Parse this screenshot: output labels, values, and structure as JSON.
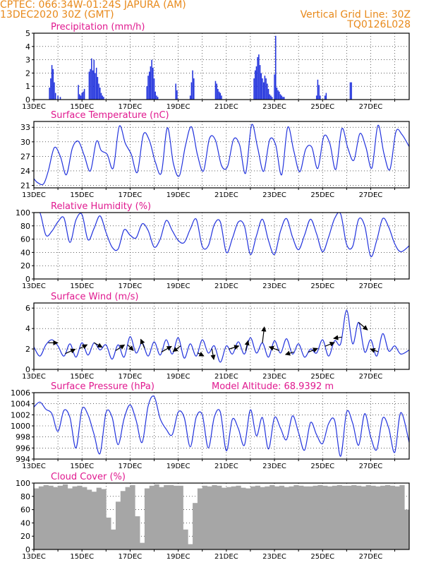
{
  "header": {
    "station_line": "CPTEC:    066:34W-01:24S   JAPURA (AM)",
    "date_line": "13DEC2020 30Z (GMT)",
    "grid_line": "Vertical Grid Line: 30Z",
    "model_code": "TQ0126L028"
  },
  "colors": {
    "header": "#e8891a",
    "panel_title": "#e0198f",
    "series": "#2233dd",
    "wind_arrow": "#000000",
    "cloud_fill": "#a6a6a6",
    "grid": "#000000"
  },
  "chart_data": [
    {
      "type": "bar",
      "title": "Precipitation (mm/h)",
      "x_tick_labels": [
        "13DEC",
        "15DEC",
        "17DEC",
        "19DEC",
        "21DEC",
        "23DEC",
        "25DEC",
        "27DEC"
      ],
      "x_range_days": [
        0,
        15.6
      ],
      "ylim": [
        0,
        5
      ],
      "y_ticks": [
        0,
        1,
        2,
        3,
        4,
        5
      ],
      "x_days": [
        0.65,
        0.7,
        0.75,
        0.8,
        0.85,
        0.9,
        1.0,
        1.1,
        1.85,
        1.9,
        1.95,
        2.0,
        2.05,
        2.1,
        2.3,
        2.35,
        2.4,
        2.45,
        2.5,
        2.55,
        2.6,
        2.65,
        2.7,
        2.75,
        2.8,
        2.85,
        2.9,
        4.7,
        4.75,
        4.8,
        4.85,
        4.9,
        4.95,
        5.0,
        5.05,
        5.1,
        5.15,
        5.9,
        5.95,
        6.5,
        6.55,
        6.6,
        6.65,
        7.55,
        7.6,
        7.65,
        7.7,
        7.75,
        7.8,
        9.15,
        9.2,
        9.25,
        9.3,
        9.35,
        9.4,
        9.45,
        9.5,
        9.55,
        9.6,
        9.65,
        9.7,
        9.75,
        9.8,
        9.85,
        9.9,
        10.0,
        10.05,
        10.1,
        10.15,
        10.2,
        10.25,
        10.3,
        10.35,
        10.4,
        11.75,
        11.8,
        11.85,
        11.9,
        12.1,
        12.15,
        13.15,
        13.2
      ],
      "values": [
        0.9,
        1.6,
        2.6,
        2.3,
        1.3,
        0.5,
        0.3,
        0.2,
        1.1,
        0.4,
        0.3,
        0.5,
        0.6,
        0.8,
        2.1,
        2.3,
        3.1,
        2.2,
        3.0,
        2.0,
        2.4,
        1.7,
        1.2,
        0.9,
        0.5,
        0.3,
        0.2,
        1.0,
        1.8,
        2.1,
        2.5,
        3.0,
        2.4,
        1.6,
        0.6,
        0.3,
        0.2,
        1.2,
        0.7,
        0.3,
        1.3,
        2.2,
        1.6,
        1.4,
        1.2,
        0.8,
        0.6,
        0.5,
        0.3,
        1.6,
        2.2,
        2.5,
        3.2,
        3.4,
        2.6,
        2.0,
        1.6,
        1.3,
        1.8,
        1.6,
        1.2,
        0.8,
        0.4,
        0.3,
        0.2,
        1.9,
        4.8,
        0.9,
        0.7,
        0.6,
        0.4,
        0.3,
        0.2,
        0.2,
        0.3,
        1.5,
        1.1,
        0.3,
        0.3,
        0.5,
        1.3,
        1.3
      ]
    },
    {
      "type": "line",
      "title": "Surface Temperature (nC)",
      "x_tick_labels": [
        "13DEC",
        "15DEC",
        "17DEC",
        "19DEC",
        "21DEC",
        "23DEC",
        "25DEC",
        "27DEC"
      ],
      "x_range_days": [
        0,
        15.6
      ],
      "ylim": [
        20.5,
        34.2
      ],
      "y_ticks": [
        21,
        24,
        27,
        30,
        33
      ],
      "x_days": [
        0.0,
        0.15,
        0.4,
        0.6,
        0.85,
        1.1,
        1.35,
        1.6,
        1.85,
        2.1,
        2.35,
        2.6,
        2.8,
        3.05,
        3.3,
        3.55,
        3.8,
        4.05,
        4.3,
        4.55,
        4.8,
        5.05,
        5.3,
        5.55,
        5.8,
        6.05,
        6.3,
        6.55,
        6.8,
        7.05,
        7.3,
        7.55,
        7.8,
        8.05,
        8.3,
        8.55,
        8.8,
        9.05,
        9.3,
        9.55,
        9.8,
        10.05,
        10.3,
        10.55,
        10.8,
        11.05,
        11.3,
        11.55,
        11.8,
        12.05,
        12.3,
        12.55,
        12.8,
        13.05,
        13.3,
        13.55,
        13.8,
        14.05,
        14.3,
        14.55,
        14.8,
        15.05,
        15.3,
        15.6
      ],
      "values": [
        22.4,
        21.6,
        21.3,
        24.0,
        28.8,
        27.0,
        23.2,
        28.7,
        30.1,
        27.1,
        24.0,
        30.1,
        28.2,
        27.4,
        24.6,
        33.2,
        29.7,
        27.4,
        23.7,
        31.5,
        30.3,
        25.8,
        23.6,
        32.9,
        25.5,
        23.0,
        29.2,
        33.1,
        27.3,
        24.0,
        30.7,
        30.3,
        25.1,
        24.9,
        30.5,
        29.4,
        23.5,
        33.5,
        28.8,
        23.9,
        30.4,
        29.4,
        23.2,
        33.0,
        28.2,
        23.8,
        28.5,
        28.9,
        24.5,
        31.1,
        29.7,
        24.3,
        32.7,
        28.7,
        26.2,
        31.7,
        28.9,
        24.6,
        33.4,
        27.6,
        24.3,
        32.1,
        31.5,
        29.0
      ]
    },
    {
      "type": "line",
      "title": "Relative Humidity (%)",
      "x_tick_labels": [
        "13DEC",
        "15DEC",
        "17DEC",
        "19DEC",
        "21DEC",
        "23DEC",
        "25DEC",
        "27DEC"
      ],
      "x_range_days": [
        0,
        15.6
      ],
      "ylim": [
        0,
        100
      ],
      "y_ticks": [
        0,
        20,
        40,
        60,
        80,
        100
      ],
      "x_days": [
        0.0,
        0.25,
        0.5,
        0.75,
        1.0,
        1.25,
        1.5,
        1.75,
        2.0,
        2.25,
        2.5,
        2.75,
        3.0,
        3.25,
        3.5,
        3.75,
        4.0,
        4.25,
        4.5,
        4.75,
        5.0,
        5.25,
        5.5,
        5.75,
        6.0,
        6.25,
        6.5,
        6.75,
        7.0,
        7.25,
        7.5,
        7.75,
        8.0,
        8.25,
        8.5,
        8.75,
        9.0,
        9.25,
        9.5,
        9.75,
        10.0,
        10.25,
        10.5,
        10.75,
        11.0,
        11.25,
        11.5,
        11.75,
        12.0,
        12.25,
        12.5,
        12.75,
        13.0,
        13.25,
        13.5,
        13.75,
        14.0,
        14.25,
        14.5,
        14.75,
        15.0,
        15.25,
        15.6
      ],
      "values": [
        100,
        100,
        66,
        72,
        86,
        92,
        55,
        89,
        97,
        59,
        76,
        95,
        70,
        48,
        45,
        74,
        66,
        62,
        83,
        73,
        48,
        60,
        88,
        73,
        58,
        55,
        75,
        90,
        49,
        50,
        82,
        86,
        40,
        61,
        86,
        80,
        37,
        65,
        90,
        58,
        37,
        72,
        91,
        63,
        44,
        66,
        90,
        68,
        41,
        63,
        91,
        98,
        52,
        49,
        90,
        80,
        34,
        58,
        91,
        78,
        53,
        41,
        50
      ]
    },
    {
      "type": "line",
      "title": "Surface Wind (m/s)",
      "x_tick_labels": [
        "13DEC",
        "15DEC",
        "17DEC",
        "19DEC",
        "21DEC",
        "23DEC",
        "25DEC",
        "27DEC"
      ],
      "x_range_days": [
        0,
        15.6
      ],
      "ylim": [
        0,
        6.5
      ],
      "y_ticks": [
        0,
        2,
        4,
        6
      ],
      "x_days": [
        0.0,
        0.25,
        0.5,
        0.75,
        1.0,
        1.25,
        1.5,
        1.75,
        2.0,
        2.25,
        2.5,
        2.75,
        3.0,
        3.25,
        3.5,
        3.75,
        4.0,
        4.25,
        4.5,
        4.75,
        5.0,
        5.25,
        5.5,
        5.75,
        6.0,
        6.25,
        6.5,
        6.75,
        7.0,
        7.25,
        7.5,
        7.75,
        8.0,
        8.25,
        8.5,
        8.75,
        9.0,
        9.25,
        9.5,
        9.75,
        10.0,
        10.25,
        10.5,
        10.75,
        11.0,
        11.25,
        11.5,
        11.75,
        12.0,
        12.25,
        12.5,
        12.75,
        13.0,
        13.25,
        13.5,
        13.75,
        14.0,
        14.25,
        14.5,
        14.75,
        15.0,
        15.25,
        15.6
      ],
      "values": [
        2.2,
        1.3,
        2.4,
        2.9,
        2.3,
        1.3,
        2.5,
        1.2,
        2.6,
        1.4,
        2.6,
        1.9,
        2.4,
        1.0,
        2.4,
        1.2,
        3.2,
        1.6,
        2.6,
        1.3,
        2.7,
        1.4,
        2.9,
        1.5,
        3.1,
        1.1,
        2.5,
        1.3,
        2.9,
        1.6,
        2.3,
        0.7,
        2.3,
        1.5,
        2.7,
        1.5,
        3.1,
        1.6,
        2.6,
        1.2,
        2.8,
        1.6,
        3.0,
        1.5,
        2.5,
        1.2,
        2.0,
        1.6,
        2.9,
        1.3,
        2.8,
        2.5,
        5.8,
        2.5,
        4.6,
        1.7,
        2.9,
        1.3,
        3.5,
        1.8,
        2.3,
        1.5,
        1.9
      ],
      "wind_vectors": [
        {
          "day": 0.6,
          "u": 1.5,
          "v": 0.0
        },
        {
          "day": 1.3,
          "u": 1.6,
          "v": 0.7
        },
        {
          "day": 1.9,
          "u": 1.2,
          "v": 0.6
        },
        {
          "day": 2.5,
          "u": 1.3,
          "v": -0.7
        },
        {
          "day": 3.4,
          "u": 1.4,
          "v": 0.9
        },
        {
          "day": 3.9,
          "u": 0.9,
          "v": -0.9
        },
        {
          "day": 4.6,
          "u": -0.6,
          "v": 1.4
        },
        {
          "day": 5.3,
          "u": 1.6,
          "v": 0.9
        },
        {
          "day": 6.1,
          "u": -1.2,
          "v": -0.9
        },
        {
          "day": 6.8,
          "u": 1.0,
          "v": -0.5
        },
        {
          "day": 7.4,
          "u": 0.3,
          "v": -1.7
        },
        {
          "day": 8.1,
          "u": 1.6,
          "v": 0.5
        },
        {
          "day": 8.8,
          "u": 0.4,
          "v": 1.6
        },
        {
          "day": 9.5,
          "u": 0.3,
          "v": 2.5
        },
        {
          "day": 10.2,
          "u": -1.6,
          "v": 0.6
        },
        {
          "day": 10.8,
          "u": -1.3,
          "v": -0.4
        },
        {
          "day": 11.4,
          "u": 1.5,
          "v": 0.6
        },
        {
          "day": 12.1,
          "u": 1.5,
          "v": 0.6
        },
        {
          "day": 12.8,
          "u": -1.3,
          "v": -0.2
        },
        {
          "day": 13.5,
          "u": 1.4,
          "v": -1.2
        },
        {
          "day": 14.3,
          "u": -1.2,
          "v": 0.4
        }
      ]
    },
    {
      "type": "line",
      "title": "Surface Pressure (hPa)",
      "annotation": "Model Altitude: 68.9392 m",
      "x_tick_labels": [
        "13DEC",
        "15DEC",
        "17DEC",
        "19DEC",
        "21DEC",
        "23DEC",
        "25DEC",
        "27DEC"
      ],
      "x_range_days": [
        0,
        15.6
      ],
      "ylim": [
        994,
        1006
      ],
      "y_ticks": [
        994,
        996,
        998,
        1000,
        1002,
        1004,
        1006
      ],
      "x_days": [
        0.0,
        0.25,
        0.5,
        0.75,
        1.0,
        1.25,
        1.5,
        1.75,
        2.0,
        2.25,
        2.5,
        2.75,
        3.0,
        3.25,
        3.5,
        3.75,
        4.0,
        4.25,
        4.5,
        4.75,
        5.0,
        5.25,
        5.5,
        5.75,
        6.0,
        6.25,
        6.5,
        6.75,
        7.0,
        7.25,
        7.5,
        7.75,
        8.0,
        8.25,
        8.5,
        8.75,
        9.0,
        9.25,
        9.5,
        9.75,
        10.0,
        10.25,
        10.5,
        10.75,
        11.0,
        11.25,
        11.5,
        11.75,
        12.0,
        12.25,
        12.5,
        12.75,
        13.0,
        13.25,
        13.5,
        13.75,
        14.0,
        14.25,
        14.5,
        14.75,
        15.0,
        15.25,
        15.6
      ],
      "values": [
        1003.4,
        1004.3,
        1003.0,
        1002.2,
        999.0,
        1002.8,
        1001.5,
        996.0,
        1003.0,
        1002.0,
        998.5,
        995.0,
        1002.4,
        1001.6,
        996.6,
        1001.3,
        1003.8,
        1001.0,
        997.0,
        1003.6,
        1005.3,
        1001.3,
        999.4,
        998.4,
        1002.5,
        1001.5,
        996.2,
        1001.6,
        1002.0,
        996.0,
        1001.6,
        1002.5,
        995.5,
        1001.2,
        999.5,
        996.5,
        1002.9,
        998.2,
        1001.5,
        995.8,
        1001.5,
        999.6,
        997.5,
        1001.8,
        998.8,
        995.6,
        1000.6,
        998.4,
        996.8,
        1000.4,
        1001.0,
        994.5,
        1002.5,
        1000.5,
        996.5,
        1002.2,
        998.0,
        995.7,
        1001.4,
        999.6,
        995.2,
        1002.4,
        997.0
      ]
    },
    {
      "type": "area",
      "title": "Cloud Cover (%)",
      "x_tick_labels": [
        "13DEC",
        "15DEC",
        "17DEC",
        "19DEC",
        "21DEC",
        "23DEC",
        "25DEC",
        "27DEC"
      ],
      "x_range_days": [
        0,
        15.6
      ],
      "ylim": [
        0,
        100
      ],
      "y_ticks": [
        0,
        20,
        40,
        60,
        80,
        100
      ],
      "x_days": [
        0.0,
        0.2,
        0.4,
        0.6,
        0.8,
        1.0,
        1.2,
        1.4,
        1.6,
        1.8,
        2.0,
        2.2,
        2.4,
        2.6,
        2.8,
        3.0,
        3.2,
        3.4,
        3.6,
        3.8,
        4.0,
        4.2,
        4.4,
        4.6,
        4.8,
        5.0,
        5.2,
        5.4,
        5.6,
        5.8,
        6.0,
        6.2,
        6.4,
        6.6,
        6.8,
        7.0,
        7.2,
        7.4,
        7.6,
        7.8,
        8.0,
        8.2,
        8.4,
        8.6,
        8.8,
        9.0,
        9.2,
        9.4,
        9.6,
        9.8,
        10.0,
        10.2,
        10.4,
        10.6,
        10.8,
        11.0,
        11.2,
        11.4,
        11.6,
        11.8,
        12.0,
        12.2,
        12.4,
        12.6,
        12.8,
        13.0,
        13.2,
        13.4,
        13.6,
        13.8,
        14.0,
        14.2,
        14.4,
        14.6,
        14.8,
        15.0,
        15.2,
        15.4,
        15.6
      ],
      "values": [
        92,
        95,
        97,
        96,
        94,
        96,
        98,
        92,
        95,
        96,
        94,
        90,
        87,
        93,
        91,
        48,
        30,
        72,
        88,
        94,
        97,
        50,
        10,
        92,
        96,
        98,
        94,
        97,
        97,
        96,
        96,
        30,
        8,
        70,
        92,
        96,
        95,
        97,
        96,
        93,
        94,
        95,
        96,
        93,
        92,
        95,
        96,
        94,
        95,
        97,
        95,
        96,
        94,
        95,
        97,
        96,
        95,
        95,
        96,
        97,
        96,
        95,
        96,
        97,
        96,
        96,
        97,
        96,
        95,
        97,
        96,
        95,
        96,
        97,
        96,
        95,
        97,
        60,
        97
      ]
    }
  ]
}
